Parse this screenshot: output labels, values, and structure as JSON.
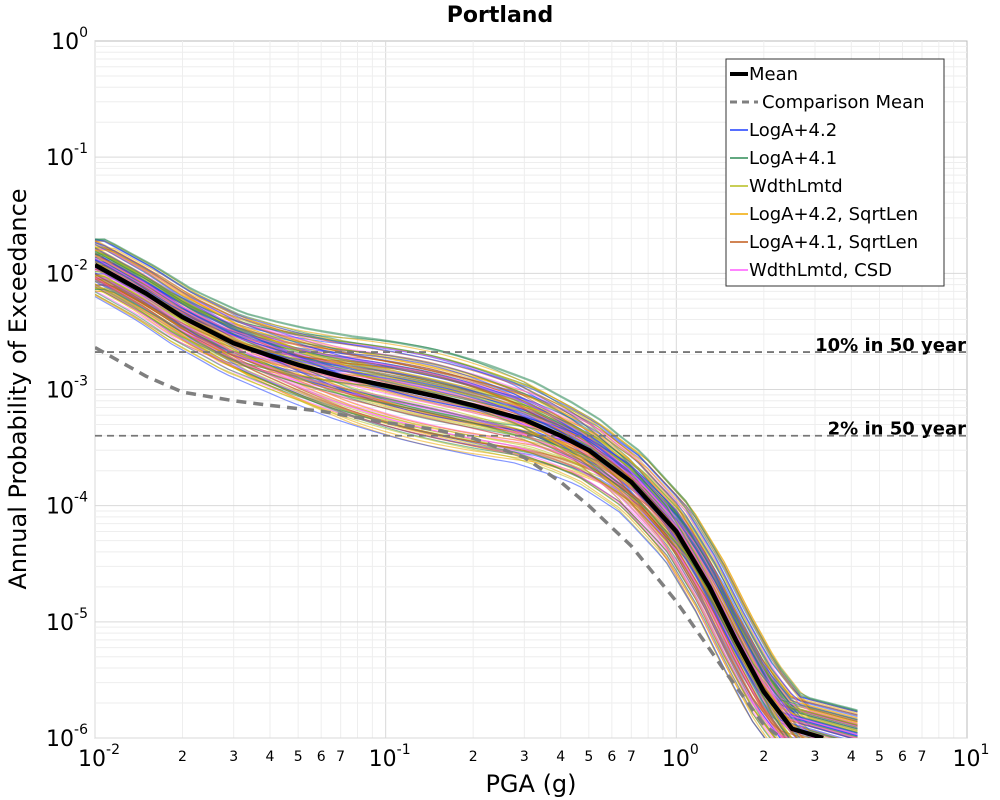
{
  "chart_data": {
    "type": "line",
    "title": "Portland",
    "xlabel": "PGA (g)",
    "ylabel": "Annual Probability of Exceedance",
    "xscale": "log",
    "yscale": "log",
    "xlim": [
      0.01,
      10
    ],
    "ylim": [
      1e-06,
      1
    ],
    "grid": true,
    "legend_position": "top-right",
    "x_major_ticks": [
      {
        "base": "10",
        "exp": "-2",
        "value": 0.01
      },
      {
        "base": "10",
        "exp": "-1",
        "value": 0.1
      },
      {
        "base": "10",
        "exp": "0",
        "value": 1
      },
      {
        "base": "10",
        "exp": "1",
        "value": 10
      }
    ],
    "y_major_ticks": [
      {
        "base": "10",
        "exp": "0",
        "value": 1
      },
      {
        "base": "10",
        "exp": "-1",
        "value": 0.1
      },
      {
        "base": "10",
        "exp": "-2",
        "value": 0.01
      },
      {
        "base": "10",
        "exp": "-3",
        "value": 0.001
      },
      {
        "base": "10",
        "exp": "-4",
        "value": 0.0001
      },
      {
        "base": "10",
        "exp": "-5",
        "value": 1e-05
      },
      {
        "base": "10",
        "exp": "-6",
        "value": 1e-06
      }
    ],
    "x_minor_tick_labels": [
      "2",
      "3",
      "4",
      "5",
      "6",
      "7"
    ],
    "reference_lines": [
      {
        "label": "10% in 50 year",
        "y": 0.0021
      },
      {
        "label": "2% in 50 year",
        "y": 0.0004
      }
    ],
    "series": [
      {
        "name": "Mean",
        "style": "solid-thick",
        "color": "#000000",
        "points": [
          [
            0.01,
            0.0118
          ],
          [
            0.015,
            0.0067
          ],
          [
            0.02,
            0.0042
          ],
          [
            0.03,
            0.0025
          ],
          [
            0.04,
            0.00195
          ],
          [
            0.05,
            0.00163
          ],
          [
            0.07,
            0.0013
          ],
          [
            0.1,
            0.00108
          ],
          [
            0.15,
            0.00087
          ],
          [
            0.2,
            0.00073
          ],
          [
            0.3,
            0.00055
          ],
          [
            0.4,
            0.0004
          ],
          [
            0.5,
            0.0003
          ],
          [
            0.7,
            0.00016
          ],
          [
            1.0,
            6e-05
          ],
          [
            1.3,
            2e-05
          ],
          [
            1.6,
            7e-06
          ],
          [
            2.0,
            2.5e-06
          ],
          [
            2.5,
            1.2e-06
          ],
          [
            3.2,
            1e-06
          ]
        ]
      },
      {
        "name": "Comparison Mean",
        "style": "dashed",
        "color": "#7f7f7f",
        "points": [
          [
            0.01,
            0.0023
          ],
          [
            0.015,
            0.0013
          ],
          [
            0.02,
            0.00095
          ],
          [
            0.03,
            0.0008
          ],
          [
            0.04,
            0.00073
          ],
          [
            0.06,
            0.00065
          ],
          [
            0.1,
            0.00052
          ],
          [
            0.15,
            0.00045
          ],
          [
            0.2,
            0.00038
          ],
          [
            0.3,
            0.00026
          ],
          [
            0.4,
            0.00016
          ],
          [
            0.5,
            0.0001
          ],
          [
            0.7,
            4.5e-05
          ],
          [
            1.0,
            1.5e-05
          ],
          [
            1.5,
            3.5e-06
          ],
          [
            2.0,
            1.3e-06
          ],
          [
            2.3,
            1e-06
          ]
        ]
      },
      {
        "name": "LogA+4.2",
        "color": "#1f3fff"
      },
      {
        "name": "LogA+4.1",
        "color": "#2e8b57"
      },
      {
        "name": "WdthLmtd",
        "color": "#b5bd1e"
      },
      {
        "name": "LogA+4.2, SqrtLen",
        "color": "#f0a800"
      },
      {
        "name": "LogA+4.1, SqrtLen",
        "color": "#c25b1b"
      },
      {
        "name": "WdthLmtd, CSD",
        "color": "#ff5cff"
      }
    ]
  }
}
